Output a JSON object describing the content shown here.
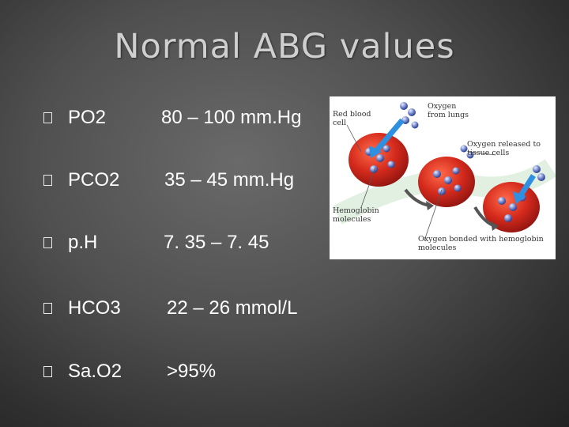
{
  "slide": {
    "title": "Normal ABG values",
    "rows": [
      {
        "param": "PO2",
        "range": "80 – 100 mm.Hg"
      },
      {
        "param": "PCO2",
        "range": "35 – 45 mm.Hg"
      },
      {
        "param": "p.H",
        "range": "7. 35 – 7. 45"
      },
      {
        "param": "HCO3",
        "range": "22 – 26 mmol/L"
      },
      {
        "param": "Sa.O2",
        "range": ">95%"
      }
    ]
  },
  "diagram": {
    "red_blood_cell": "Red blood cell",
    "oxygen_from_lungs": "Oxygen from lungs",
    "oxygen_released": "Oxygen released to tissue cells",
    "hemoglobin": "Hemoglobin molecules",
    "oxygen_bonded": "Oxygen bonded with hemoglobin molecules"
  },
  "colors": {
    "bullet": "#e8e8e8",
    "text": "#ffffff",
    "title": "#cfcfcf",
    "cell": "#c8201a",
    "oxygen": "#3a5fb8"
  }
}
